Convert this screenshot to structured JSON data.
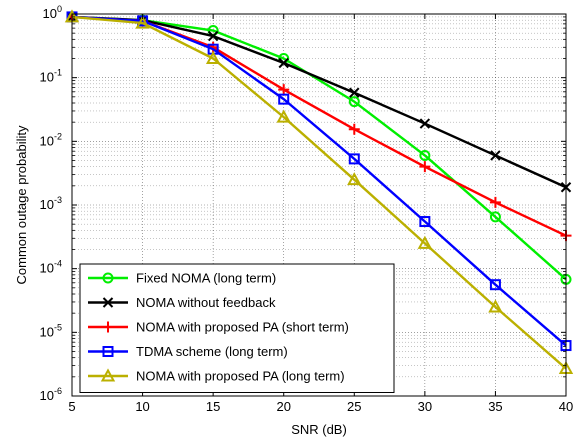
{
  "chart_data": {
    "type": "line",
    "title": "",
    "xlabel": "SNR (dB)",
    "ylabel": "Common outage probability",
    "xlim": [
      5,
      40
    ],
    "ylim": [
      1e-06,
      1
    ],
    "y_scale": "log",
    "grid": true,
    "legend_position": "bottom-left",
    "x_ticks": [
      "5",
      "10",
      "15",
      "20",
      "25",
      "30",
      "35",
      "40"
    ],
    "y_ticks": [
      {
        "base": "10",
        "exp": "0",
        "value": 1
      },
      {
        "base": "10",
        "exp": "-1",
        "value": 0.1
      },
      {
        "base": "10",
        "exp": "-2",
        "value": 0.01
      },
      {
        "base": "10",
        "exp": "-3",
        "value": 0.001
      },
      {
        "base": "10",
        "exp": "-4",
        "value": 0.0001
      },
      {
        "base": "10",
        "exp": "-5",
        "value": 1e-05
      },
      {
        "base": "10",
        "exp": "-6",
        "value": 1e-06
      }
    ],
    "x": [
      5,
      10,
      15,
      20,
      25,
      30,
      35,
      40
    ],
    "series": [
      {
        "name": "Fixed NOMA (long term)",
        "color": "#00ee00",
        "marker": "circle",
        "values": [
          0.9,
          0.8,
          0.55,
          0.2,
          0.042,
          0.006,
          0.00065,
          6.8e-05
        ]
      },
      {
        "name": "NOMA without feedback",
        "color": "#000000",
        "marker": "x",
        "values": [
          0.9,
          0.8,
          0.45,
          0.17,
          0.058,
          0.019,
          0.006,
          0.0019
        ]
      },
      {
        "name": "NOMA with proposed PA (short term)",
        "color": "#ff0000",
        "marker": "plus",
        "values": [
          0.9,
          0.78,
          0.3,
          0.065,
          0.0155,
          0.004,
          0.0011,
          0.00033
        ]
      },
      {
        "name": "TDMA scheme (long term)",
        "color": "#0000ff",
        "marker": "square",
        "values": [
          0.9,
          0.78,
          0.28,
          0.046,
          0.0053,
          0.00055,
          5.6e-05,
          6.2e-06
        ]
      },
      {
        "name": "NOMA with proposed PA (long term)",
        "color": "#bbb000",
        "marker": "triangle",
        "values": [
          0.9,
          0.72,
          0.2,
          0.024,
          0.0025,
          0.00025,
          2.5e-05,
          2.7e-06
        ]
      }
    ]
  }
}
